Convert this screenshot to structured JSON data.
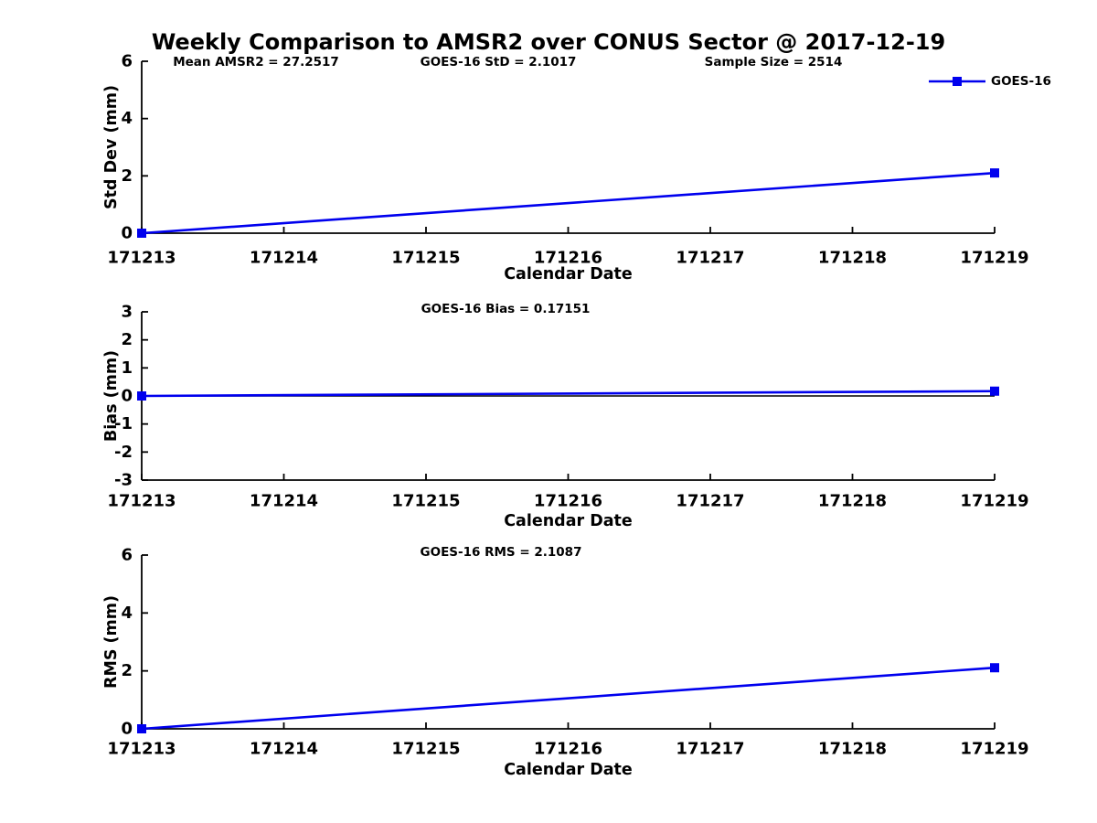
{
  "title": "Weekly Comparison to AMSR2 over CONUS Sector @ 2017-12-19",
  "legend": {
    "label": "GOES-16",
    "position": "top-right"
  },
  "colors": {
    "series": "#0000ee",
    "axis": "#000000",
    "text": "#000000",
    "background": "#ffffff"
  },
  "chart_data": [
    {
      "type": "line",
      "name": "std-dev",
      "ylabel": "Std Dev (mm)",
      "xlabel": "Calendar Date",
      "xlim": [
        171213,
        171219
      ],
      "ylim": [
        0,
        6
      ],
      "yticks": [
        0,
        2,
        4,
        6
      ],
      "xticks": [
        171213,
        171214,
        171215,
        171216,
        171217,
        171218,
        171219
      ],
      "grid": false,
      "annotations": [
        "Mean AMSR2 = 27.2517",
        "GOES-16 StD = 2.1017",
        "Sample Size = 2514"
      ],
      "series": [
        {
          "name": "GOES-16",
          "x": [
            171213,
            171219
          ],
          "y": [
            0,
            2.1017
          ]
        }
      ]
    },
    {
      "type": "line",
      "name": "bias",
      "ylabel": "Bias (mm)",
      "xlabel": "Calendar Date",
      "xlim": [
        171213,
        171219
      ],
      "ylim": [
        -3,
        3
      ],
      "yticks": [
        -3,
        -2,
        -1,
        0,
        1,
        2,
        3
      ],
      "xticks": [
        171213,
        171214,
        171215,
        171216,
        171217,
        171218,
        171219
      ],
      "grid": false,
      "zero_line": true,
      "annotations": [
        "GOES-16 Bias  = 0.17151"
      ],
      "series": [
        {
          "name": "GOES-16",
          "x": [
            171213,
            171219
          ],
          "y": [
            0,
            0.17151
          ]
        }
      ]
    },
    {
      "type": "line",
      "name": "rms",
      "ylabel": "RMS (mm)",
      "xlabel": "Calendar Date",
      "xlim": [
        171213,
        171219
      ],
      "ylim": [
        0,
        6
      ],
      "yticks": [
        0,
        2,
        4,
        6
      ],
      "xticks": [
        171213,
        171214,
        171215,
        171216,
        171217,
        171218,
        171219
      ],
      "grid": false,
      "annotations": [
        "GOES-16 RMS = 2.1087"
      ],
      "series": [
        {
          "name": "GOES-16",
          "x": [
            171213,
            171219
          ],
          "y": [
            0,
            2.1087
          ]
        }
      ]
    }
  ]
}
